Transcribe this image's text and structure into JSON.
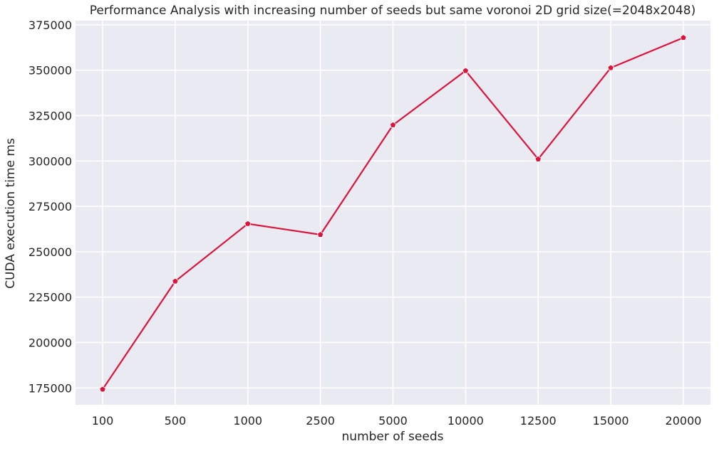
{
  "chart_data": {
    "type": "line",
    "title": "Performance Analysis with increasing number of seeds but same voronoi 2D grid size(=2048x2048)",
    "xlabel": "number of seeds",
    "ylabel": "CUDA execution time ms",
    "categories": [
      "100",
      "500",
      "1000",
      "2500",
      "5000",
      "10000",
      "12500",
      "15000",
      "20000"
    ],
    "series": [
      {
        "values": [
          174200,
          233700,
          265400,
          259400,
          319800,
          349700,
          301000,
          351300,
          367900
        ],
        "color": "#dc143c",
        "marker": "pentagon"
      }
    ],
    "ylim": [
      165700,
      377300
    ],
    "yticks": [
      175000,
      200000,
      225000,
      250000,
      275000,
      300000,
      325000,
      350000,
      375000
    ],
    "grid": true,
    "background": "#eaeaf2",
    "grid_color": "#ffffff"
  }
}
